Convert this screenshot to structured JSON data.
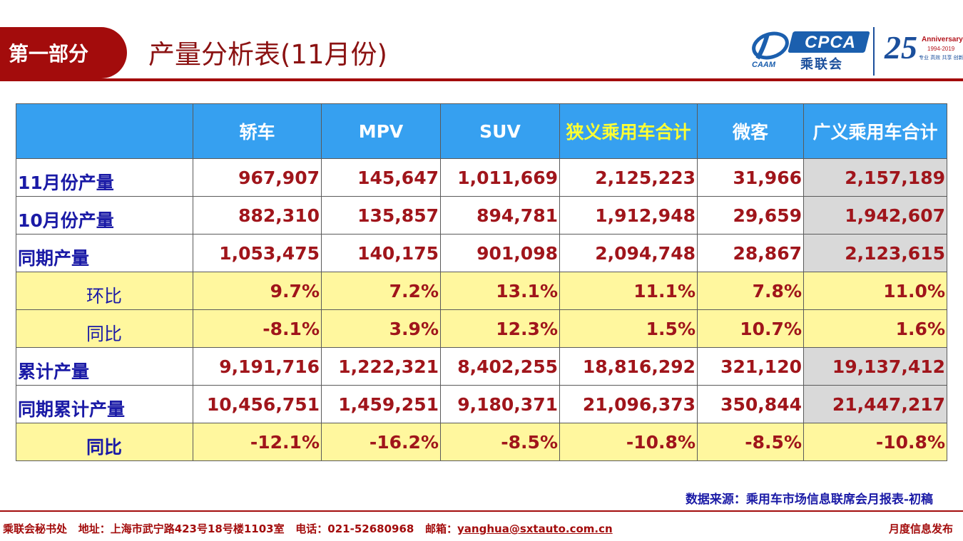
{
  "header": {
    "section": "第一部分",
    "title": "产量分析表(11月份)"
  },
  "logos": {
    "caam_text": "CAAM",
    "cpca_text": "CPCA",
    "cpca_cn": "乘联会",
    "anniversary_num": "25",
    "anniversary_word": "Anniversary",
    "anniversary_years": "1994-2019",
    "anniversary_slogan": "专业 高效 共享 创新"
  },
  "table": {
    "columns": [
      "",
      "轿车",
      "MPV",
      "SUV",
      "狭义乘用车合计",
      "微客",
      "广义乘用车合计"
    ],
    "rows": [
      {
        "label": "11月份产量",
        "values": [
          "967,907",
          "145,647",
          "1,011,669",
          "2,125,223",
          "31,966",
          "2,157,189"
        ]
      },
      {
        "label": "10月份产量",
        "values": [
          "882,310",
          "135,857",
          "894,781",
          "1,912,948",
          "29,659",
          "1,942,607"
        ]
      },
      {
        "label": "同期产量",
        "values": [
          "1,053,475",
          "140,175",
          "901,098",
          "2,094,748",
          "28,867",
          "2,123,615"
        ]
      },
      {
        "label": "环比",
        "values": [
          "9.7%",
          "7.2%",
          "13.1%",
          "11.1%",
          "7.8%",
          "11.0%"
        ]
      },
      {
        "label": "同比",
        "values": [
          "-8.1%",
          "3.9%",
          "12.3%",
          "1.5%",
          "10.7%",
          "1.6%"
        ]
      },
      {
        "label": "累计产量",
        "values": [
          "9,191,716",
          "1,222,321",
          "8,402,255",
          "18,816,292",
          "321,120",
          "19,137,412"
        ]
      },
      {
        "label": "同期累计产量",
        "values": [
          "10,456,751",
          "1,459,251",
          "9,180,371",
          "21,096,373",
          "350,844",
          "21,447,217"
        ]
      },
      {
        "label": "同比",
        "values": [
          "-12.1%",
          "-16.2%",
          "-8.5%",
          "-10.8%",
          "-8.5%",
          "-10.8%"
        ]
      }
    ]
  },
  "source": "数据来源：乘用车市场信息联席会月报表-初稿",
  "footer": {
    "org": "乘联会秘书处",
    "address": "地址：上海市武宁路423号18号楼1103室",
    "phone": "电话：021-52680968",
    "email_label": "邮箱：",
    "email": "yanghua@sxtauto.com.cn",
    "right": "月度信息发布"
  },
  "colors": {
    "brand_red": "#a30c0c",
    "header_blue": "#36a0f0",
    "highlight_yellow": "#fff79e",
    "value_red": "#a0151b",
    "label_blue": "#1a1aa6"
  }
}
